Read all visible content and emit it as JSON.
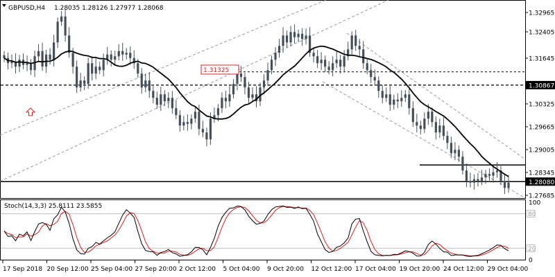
{
  "header": {
    "symbol": "GBPUSD,H4",
    "ohlc": "1.28035 1.28126 1.27977 1.28068",
    "stoch_label": "Stoch(14,3,3) 25.8111 23.5855"
  },
  "colors": {
    "candle": "#454f5a",
    "ma": "#000000",
    "grid_line": "#000000",
    "channel": "#9a9a9a",
    "price_label_bg": "#000000",
    "price_label_text": "#ffffff",
    "annotation": "#e02020",
    "stoch_main": "#000000",
    "stoch_signal": "#e02020",
    "stoch_level": "#c0c0c0"
  },
  "chart_data": {
    "type": "candlestick",
    "price_axis_ticks": [
      "1.32965",
      "1.32405",
      "1.31645",
      "1.30867",
      "1.30325",
      "1.29665",
      "1.29005",
      "1.28345",
      "1.28080",
      "1.27685"
    ],
    "time_axis_labels": [
      "17 Sep 2018",
      "20 Sep 12:00",
      "25 Sep 04:00",
      "27 Sep 20:00",
      "2 Oct 12:00",
      "5 Oct 04:00",
      "9 Oct 20:00",
      "12 Oct 12:00",
      "17 Oct 04:00",
      "19 Oct 20:00",
      "24 Oct 12:00",
      "29 Oct 04:00"
    ],
    "highlighted_levels": [
      {
        "label": "1.30867",
        "value": 1.30867,
        "style": "dashed"
      },
      {
        "label": "1.28080",
        "value": 1.2808,
        "style": "solid"
      }
    ],
    "reference_lines": [
      {
        "value": 1.3125,
        "style": "dashed"
      },
      {
        "value": 1.2856,
        "style": "solid"
      }
    ],
    "annotation_label": "1.31325",
    "closes": [
      1.3165,
      1.315,
      1.3155,
      1.314,
      1.316,
      1.3145,
      1.315,
      1.313,
      1.317,
      1.3185,
      1.314,
      1.3175,
      1.316,
      1.321,
      1.327,
      1.3285,
      1.323,
      1.318,
      1.314,
      1.308,
      1.31,
      1.309,
      1.315,
      1.312,
      1.314,
      1.313,
      1.316,
      1.3175,
      1.316,
      1.317,
      1.3185,
      1.3175,
      1.318,
      1.3165,
      1.315,
      1.312,
      1.308,
      1.31,
      1.307,
      1.305,
      1.303,
      1.306,
      1.304,
      1.305,
      1.302,
      1.3,
      1.297,
      1.298,
      1.2975,
      1.299,
      1.301,
      1.296,
      1.295,
      1.293,
      1.299,
      1.3,
      1.302,
      1.305,
      1.304,
      1.306,
      1.309,
      1.312,
      1.311,
      1.308,
      1.305,
      1.306,
      1.304,
      1.308,
      1.31,
      1.313,
      1.316,
      1.318,
      1.32,
      1.323,
      1.321,
      1.324,
      1.3225,
      1.3235,
      1.322,
      1.323,
      1.318,
      1.317,
      1.315,
      1.316,
      1.314,
      1.313,
      1.315,
      1.316,
      1.314,
      1.317,
      1.319,
      1.323,
      1.32,
      1.319,
      1.315,
      1.313,
      1.311,
      1.31,
      1.307,
      1.305,
      1.306,
      1.303,
      1.3045,
      1.304,
      1.305,
      1.306,
      1.302,
      1.298,
      1.297,
      1.296,
      1.299,
      1.301,
      1.298,
      1.295,
      1.297,
      1.294,
      1.292,
      1.289,
      1.29,
      1.288,
      1.284,
      1.281,
      1.2805,
      1.2815,
      1.281,
      1.282,
      1.283,
      1.2825,
      1.2835,
      1.284,
      1.281,
      1.279,
      1.2805
    ],
    "ma_period": 14,
    "stochastic": {
      "title": "Stoch(14,3,3)",
      "main_value": 25.8111,
      "signal_value": 23.5855,
      "levels": [
        80,
        20
      ],
      "axis_ticks": [
        "100",
        "80",
        "20",
        "0"
      ],
      "ylim": [
        0,
        100
      ]
    }
  }
}
